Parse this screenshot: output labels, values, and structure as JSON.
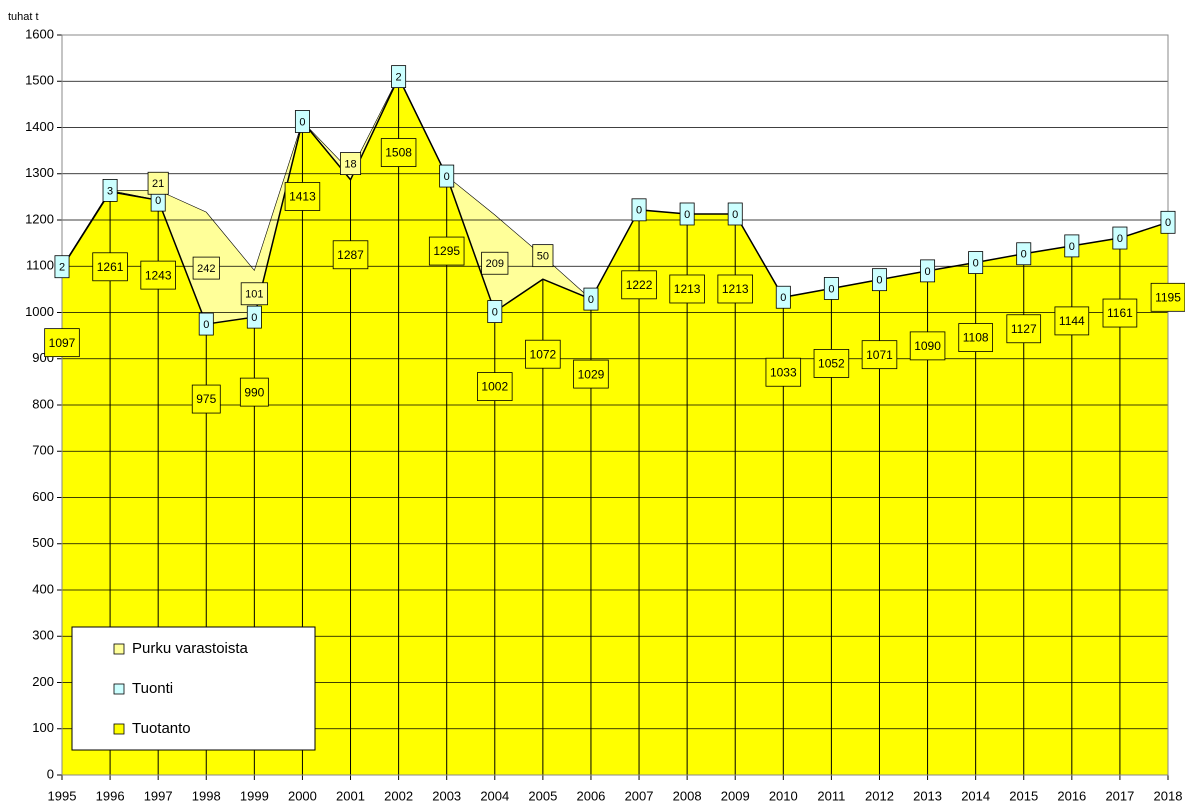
{
  "chart_data": {
    "type": "stacked_area",
    "y_label": "tuhat t",
    "categories": [
      "1995",
      "1996",
      "1997",
      "1998",
      "1999",
      "2000",
      "2001",
      "2002",
      "2003",
      "2004",
      "2005",
      "2006",
      "2007",
      "2008",
      "2009",
      "2010",
      "2011",
      "2012",
      "2013",
      "2014",
      "2015",
      "2016",
      "2017",
      "2018"
    ],
    "series": [
      {
        "name": "Tuotanto",
        "color": "#ffff00",
        "values": [
          1097,
          1261,
          1243,
          975,
          990,
          1413,
          1287,
          1508,
          1295,
          1002,
          1072,
          1029,
          1222,
          1213,
          1213,
          1033,
          1052,
          1071,
          1090,
          1108,
          1127,
          1144,
          1161,
          1195
        ],
        "value_labels": [
          "1097",
          "1261",
          "1243",
          "975",
          "990",
          "1413",
          "1287",
          "1508",
          "1295",
          "1002",
          "1072",
          "1029",
          "1222",
          "1213",
          "1213",
          "1033",
          "1052",
          "1071",
          "1090",
          "1108",
          "1127",
          "1144",
          "1161",
          "1195"
        ]
      },
      {
        "name": "Tuonti",
        "color": "#ccffff",
        "values": [
          2,
          3,
          0,
          0,
          0,
          0,
          0,
          2,
          0,
          0,
          0,
          0,
          0,
          0,
          0,
          0,
          0,
          0,
          0,
          0,
          0,
          0,
          0,
          0
        ],
        "value_labels": [
          "2",
          "3",
          "0",
          "0",
          "0",
          "0",
          null,
          "2",
          "0",
          "0",
          null,
          "0",
          "0",
          "0",
          "0",
          "0",
          "0",
          "0",
          "0",
          "0",
          "0",
          "0",
          "0",
          "0"
        ]
      },
      {
        "name": "Purku varastoista",
        "color": "#ffff99",
        "values": [
          0,
          0,
          21,
          242,
          101,
          0,
          18,
          0,
          0,
          209,
          50,
          0,
          0,
          0,
          0,
          0,
          0,
          0,
          0,
          0,
          0,
          0,
          0,
          0
        ],
        "value_labels": [
          null,
          null,
          "21",
          "242",
          "101",
          null,
          "18",
          null,
          null,
          "209",
          "50",
          null,
          null,
          null,
          null,
          null,
          null,
          null,
          null,
          null,
          null,
          null,
          null,
          null
        ]
      }
    ],
    "ylim": [
      0,
      1600
    ],
    "yticks": [
      0,
      100,
      200,
      300,
      400,
      500,
      600,
      700,
      800,
      900,
      1000,
      1100,
      1200,
      1300,
      1400,
      1500,
      1600
    ],
    "grid": true,
    "legend": "lower left"
  }
}
